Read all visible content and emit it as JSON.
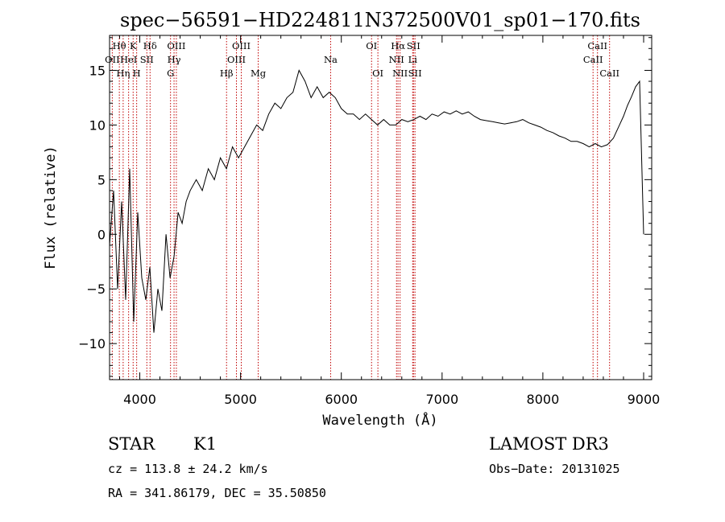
{
  "chart_data": {
    "type": "line",
    "title": "spec−56591−HD224811N372500V01_sp01−170.fits",
    "xlabel": "Wavelength (Å)",
    "ylabel": "Flux (relative)",
    "xlim": [
      3700,
      9080
    ],
    "ylim": [
      -13.3,
      18.2
    ],
    "xticks": [
      4000,
      5000,
      6000,
      7000,
      8000,
      9000
    ],
    "yticks": [
      -10,
      -5,
      0,
      5,
      10,
      15
    ],
    "ytick_labels": [
      "−10",
      "−5",
      "0",
      "5",
      "10",
      "15"
    ],
    "series": [
      {
        "name": "flux",
        "x": [
          3700,
          3740,
          3780,
          3820,
          3860,
          3900,
          3940,
          3980,
          4020,
          4060,
          4100,
          4140,
          4180,
          4220,
          4260,
          4300,
          4340,
          4380,
          4420,
          4460,
          4500,
          4560,
          4620,
          4680,
          4740,
          4800,
          4860,
          4920,
          4980,
          5040,
          5100,
          5160,
          5220,
          5280,
          5340,
          5400,
          5460,
          5520,
          5580,
          5640,
          5700,
          5760,
          5820,
          5880,
          5940,
          6000,
          6060,
          6120,
          6180,
          6240,
          6300,
          6360,
          6420,
          6480,
          6540,
          6600,
          6660,
          6720,
          6780,
          6840,
          6900,
          6960,
          7020,
          7080,
          7140,
          7200,
          7260,
          7320,
          7380,
          7440,
          7500,
          7560,
          7620,
          7680,
          7740,
          7800,
          7860,
          7920,
          7980,
          8040,
          8100,
          8160,
          8220,
          8280,
          8340,
          8400,
          8460,
          8520,
          8580,
          8640,
          8700,
          8760,
          8800,
          8840,
          8880,
          8920,
          8960,
          9000
        ],
        "values": [
          -1,
          4,
          -5,
          3,
          -6,
          6,
          -8,
          2,
          -4,
          -6,
          -3,
          -9,
          -5,
          -7,
          0,
          -4,
          -2,
          2,
          1,
          3,
          4,
          5,
          4,
          6,
          5,
          7,
          6,
          8,
          7,
          8,
          9,
          10,
          9.5,
          11,
          12,
          11.5,
          12.5,
          13,
          15,
          14,
          12.5,
          13.5,
          12.5,
          13,
          12.5,
          11.5,
          11,
          11,
          10.5,
          11,
          10.5,
          10,
          10.5,
          10,
          10,
          10.5,
          10.3,
          10.5,
          10.8,
          10.5,
          11,
          10.8,
          11.2,
          11,
          11.3,
          11,
          11.2,
          10.8,
          10.5,
          10.4,
          10.3,
          10.2,
          10.1,
          10.2,
          10.3,
          10.5,
          10.2,
          10,
          9.8,
          9.5,
          9.3,
          9,
          8.8,
          8.5,
          8.5,
          8.3,
          8,
          8.3,
          8,
          8.2,
          8.8,
          10,
          10.8,
          11.8,
          12.6,
          13.5,
          14,
          0
        ]
      }
    ],
    "line_annotations": [
      {
        "label": "Hθ",
        "x": 3797,
        "row": 1
      },
      {
        "label": "OII",
        "x": 3727,
        "row": 2
      },
      {
        "label": "Hη",
        "x": 3835,
        "row": 3
      },
      {
        "label": "K",
        "x": 3934,
        "row": 1
      },
      {
        "label": "HeI",
        "x": 3889,
        "row": 2
      },
      {
        "label": "H",
        "x": 3969,
        "row": 3
      },
      {
        "label": "Hδ",
        "x": 4102,
        "row": 1
      },
      {
        "label": "SII",
        "x": 4070,
        "row": 2
      },
      {
        "label": "OIII",
        "x": 4363,
        "row": 1
      },
      {
        "label": "Hγ",
        "x": 4340,
        "row": 2
      },
      {
        "label": "G",
        "x": 4305,
        "row": 3
      },
      {
        "label": "Hβ",
        "x": 4861,
        "row": 3
      },
      {
        "label": "OIII",
        "x": 5007,
        "row": 1
      },
      {
        "label": "OIII",
        "x": 4959,
        "row": 2
      },
      {
        "label": "Mg",
        "x": 5175,
        "row": 3
      },
      {
        "label": "Na",
        "x": 5894,
        "row": 2
      },
      {
        "label": "OI",
        "x": 6300,
        "row": 1
      },
      {
        "label": "OI",
        "x": 6363,
        "row": 3
      },
      {
        "label": "Hα",
        "x": 6563,
        "row": 1
      },
      {
        "label": "SII",
        "x": 6716,
        "row": 1
      },
      {
        "label": "NII",
        "x": 6548,
        "row": 2
      },
      {
        "label": "Li",
        "x": 6708,
        "row": 2
      },
      {
        "label": "NII",
        "x": 6583,
        "row": 3
      },
      {
        "label": "SII",
        "x": 6731,
        "row": 3
      },
      {
        "label": "CaII",
        "x": 8542,
        "row": 1
      },
      {
        "label": "CaII",
        "x": 8498,
        "row": 2
      },
      {
        "label": "CaII",
        "x": 8662,
        "row": 3
      }
    ]
  },
  "info": {
    "object_class": "STAR",
    "subclass": "K1",
    "cz": "cz = 113.8 ± 24.2 km/s",
    "coords": "RA = 341.86179, DEC =  35.50850",
    "survey": "LAMOST DR3",
    "obs_date": "Obs−Date: 20131025"
  }
}
